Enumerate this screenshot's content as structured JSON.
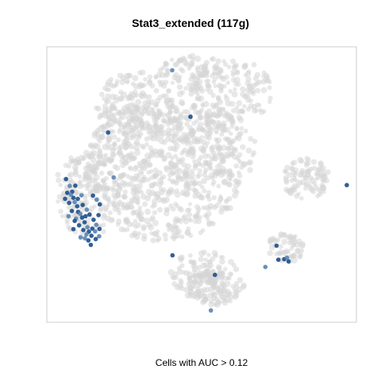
{
  "chart_data": {
    "type": "scatter",
    "title": "Stat3_extended (117g)",
    "xlabel": "",
    "ylabel": "",
    "footer": "Cells with AUC > 0.12",
    "xlim": [
      0,
      100
    ],
    "ylim": [
      0,
      100
    ],
    "grid": false,
    "colors": {
      "background_cells": "#d6d6d6",
      "high_auc": "#1c4f8c",
      "mid_auc": "#5b84b1",
      "frame": "#cccccc"
    },
    "series": [
      {
        "name": "",
        "points": [
          [
            40.5,
            91.5
          ],
          [
            46.4,
            74.6
          ],
          [
            19.8,
            68.9
          ],
          [
            21.6,
            52.6
          ],
          [
            54.3,
            17.2
          ],
          [
            40.6,
            24.3
          ],
          [
            53.0,
            4.3
          ],
          [
            96.9,
            49.8
          ],
          [
            74.2,
            27.8
          ],
          [
            70.6,
            20.1
          ],
          [
            74.8,
            22.7
          ],
          [
            76.7,
            22.9
          ],
          [
            77.6,
            23.5
          ],
          [
            78.1,
            22.1
          ],
          [
            6.2,
            52.0
          ],
          [
            7.4,
            49.5
          ],
          [
            8.2,
            47.4
          ],
          [
            8.6,
            45.2
          ],
          [
            9.0,
            43.6
          ],
          [
            9.8,
            42.1
          ],
          [
            10.1,
            40.1
          ],
          [
            10.8,
            39.4
          ],
          [
            11.4,
            38.0
          ],
          [
            12.2,
            36.3
          ],
          [
            13.1,
            34.5
          ],
          [
            13.6,
            32.9
          ],
          [
            14.4,
            31.4
          ],
          [
            12.8,
            31.9
          ],
          [
            11.8,
            33.5
          ],
          [
            10.4,
            35.2
          ],
          [
            9.4,
            37.6
          ],
          [
            8.1,
            40.4
          ],
          [
            7.2,
            43.3
          ],
          [
            7.8,
            46.3
          ],
          [
            10.0,
            44.8
          ],
          [
            11.6,
            42.6
          ],
          [
            12.9,
            40.9
          ],
          [
            13.8,
            39.1
          ],
          [
            15.1,
            37.2
          ],
          [
            16.0,
            35.4
          ],
          [
            14.7,
            34.0
          ],
          [
            12.5,
            38.5
          ],
          [
            11.2,
            46.1
          ],
          [
            9.2,
            49.6
          ],
          [
            14.9,
            46.0
          ],
          [
            16.1,
            44.5
          ],
          [
            17.1,
            42.8
          ],
          [
            16.7,
            38.9
          ],
          [
            15.6,
            33.0
          ],
          [
            9.0,
            36.8
          ],
          [
            8.6,
            33.8
          ],
          [
            10.9,
            30.8
          ],
          [
            13.4,
            29.7
          ],
          [
            14.2,
            28.1
          ],
          [
            12.3,
            30.5
          ],
          [
            15.8,
            30.2
          ],
          [
            17.0,
            33.9
          ],
          [
            16.9,
            31.2
          ],
          [
            6.6,
            47.0
          ],
          [
            5.9,
            44.8
          ],
          [
            7.0,
            38.5
          ]
        ]
      }
    ]
  }
}
